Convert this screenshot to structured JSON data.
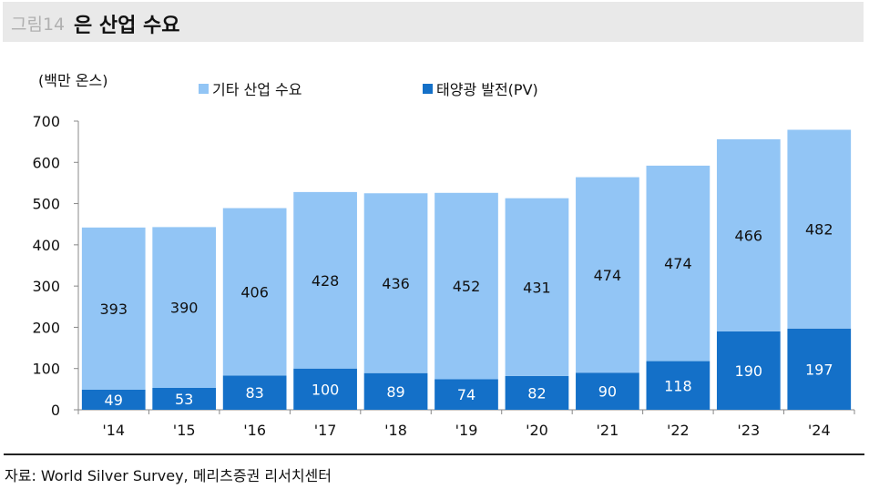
{
  "header": {
    "figure_label": "그림14",
    "title": "은 산업 수요"
  },
  "footer": {
    "source": "자료: World Silver Survey, 메리츠증권 리서치센터"
  },
  "chart_data": {
    "type": "bar",
    "stacked": true,
    "title": "은 산업 수요",
    "ylabel": "(백만 온스)",
    "ylim": [
      0,
      700
    ],
    "yticks": [
      0,
      100,
      200,
      300,
      400,
      500,
      600,
      700
    ],
    "categories": [
      "'14",
      "'15",
      "'16",
      "'17",
      "'18",
      "'19",
      "'20",
      "'21",
      "'22",
      "'23",
      "'24"
    ],
    "series": [
      {
        "name": "태양광 발전(PV)",
        "color": "#1470c8",
        "values": [
          49,
          53,
          83,
          100,
          89,
          74,
          82,
          90,
          118,
          190,
          197
        ]
      },
      {
        "name": "기타 산업 수요",
        "color": "#92c5f5",
        "values": [
          393,
          390,
          406,
          428,
          436,
          452,
          431,
          474,
          474,
          466,
          482
        ]
      }
    ],
    "grid": false,
    "legend_placement": "top"
  }
}
